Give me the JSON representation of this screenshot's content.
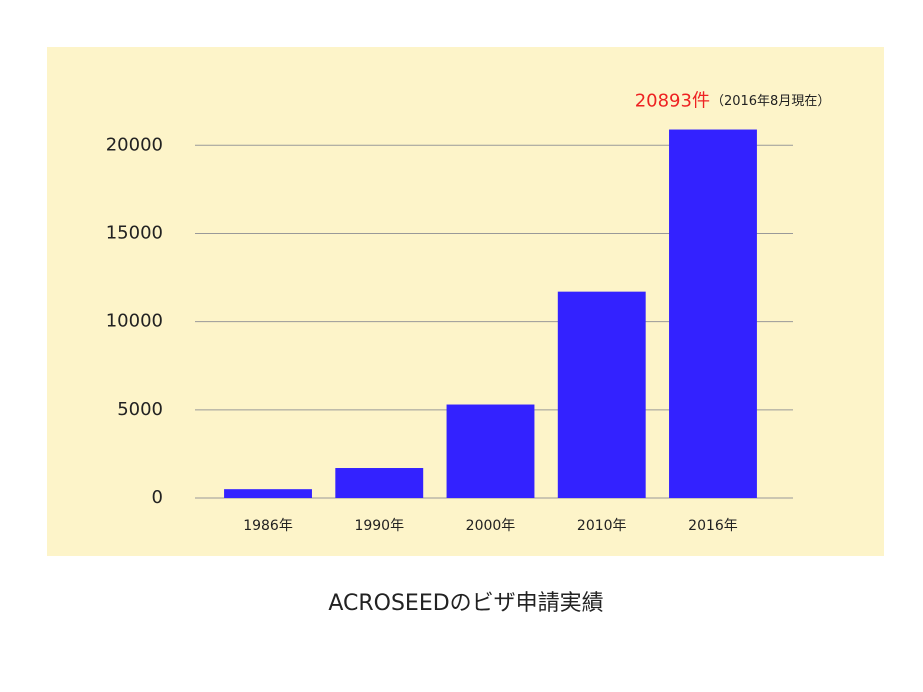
{
  "chart_data": {
    "type": "bar",
    "title": "ACROSEEDのビザ申請実績",
    "categories": [
      "1986年",
      "1990年",
      "2000年",
      "2010年",
      "2016年"
    ],
    "values": [
      500,
      1700,
      5300,
      11700,
      20893
    ],
    "value_labels": [
      null,
      null,
      null,
      null,
      "20893件"
    ],
    "annotation": "（2016年8月現在）",
    "color": "#3322ff",
    "value_label_color": "#ee2222",
    "background": "#fdf4c9",
    "ylim": [
      0,
      22000
    ],
    "yticks": [
      0,
      5000,
      10000,
      15000,
      20000
    ],
    "grid": true
  }
}
